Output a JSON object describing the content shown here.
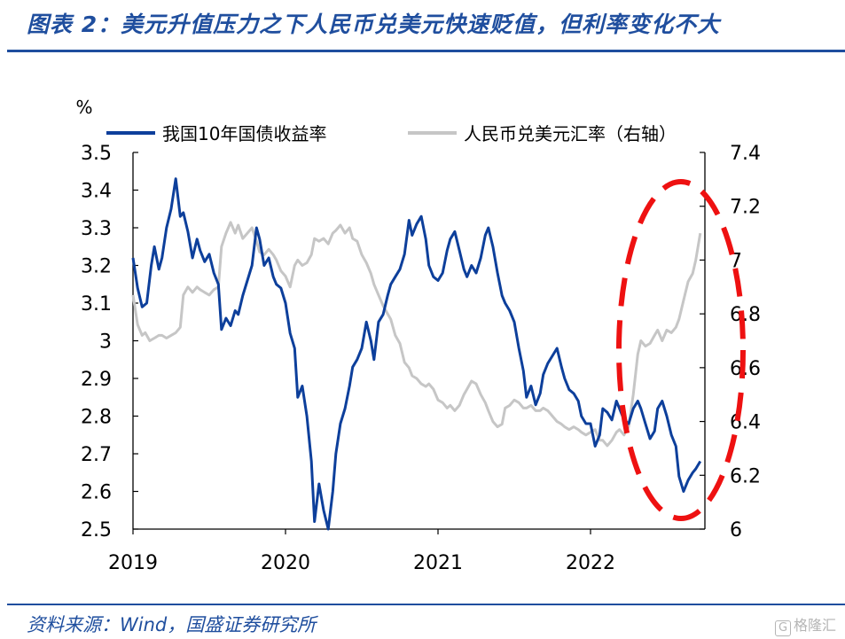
{
  "title": "图表 2：美元升值压力之下人民币兑美元快速贬值，但利率变化不大",
  "source": "资料来源：Wind，国盛证券研究所",
  "watermark": "格隆汇",
  "chart_data": {
    "type": "line",
    "title": "",
    "y_unit_label": "%",
    "x_tick_labels": [
      "2019",
      "2020",
      "2021",
      "2022"
    ],
    "x_range": [
      2019.0,
      2022.75
    ],
    "left_axis": {
      "range": [
        2.5,
        3.5
      ],
      "ticks": [
        "2.5",
        "2.6",
        "2.7",
        "2.8",
        "2.9",
        "3",
        "3.1",
        "3.2",
        "3.3",
        "3.4",
        "3.5"
      ]
    },
    "right_axis": {
      "range": [
        6.0,
        7.4
      ],
      "ticks": [
        "6",
        "6.2",
        "6.4",
        "6.6",
        "6.8",
        "7",
        "7.2",
        "7.4"
      ]
    },
    "legend_position": "top",
    "grid": false,
    "annotation": "red dashed ellipse highlighting 2022 H2",
    "series": [
      {
        "name": "我国10年国债收益率",
        "axis": "left",
        "color": "#0d3f9b",
        "points": [
          [
            2019.0,
            3.22
          ],
          [
            2019.03,
            3.14
          ],
          [
            2019.06,
            3.09
          ],
          [
            2019.09,
            3.1
          ],
          [
            2019.12,
            3.2
          ],
          [
            2019.14,
            3.25
          ],
          [
            2019.17,
            3.19
          ],
          [
            2019.19,
            3.22
          ],
          [
            2019.22,
            3.3
          ],
          [
            2019.25,
            3.35
          ],
          [
            2019.28,
            3.43
          ],
          [
            2019.31,
            3.33
          ],
          [
            2019.33,
            3.34
          ],
          [
            2019.36,
            3.29
          ],
          [
            2019.39,
            3.22
          ],
          [
            2019.42,
            3.27
          ],
          [
            2019.44,
            3.24
          ],
          [
            2019.47,
            3.21
          ],
          [
            2019.5,
            3.23
          ],
          [
            2019.53,
            3.18
          ],
          [
            2019.56,
            3.15
          ],
          [
            2019.58,
            3.03
          ],
          [
            2019.61,
            3.06
          ],
          [
            2019.64,
            3.04
          ],
          [
            2019.67,
            3.08
          ],
          [
            2019.69,
            3.07
          ],
          [
            2019.72,
            3.12
          ],
          [
            2019.75,
            3.16
          ],
          [
            2019.78,
            3.2
          ],
          [
            2019.81,
            3.3
          ],
          [
            2019.83,
            3.27
          ],
          [
            2019.86,
            3.2
          ],
          [
            2019.89,
            3.22
          ],
          [
            2019.92,
            3.17
          ],
          [
            2019.94,
            3.15
          ],
          [
            2019.97,
            3.14
          ],
          [
            2020.0,
            3.1
          ],
          [
            2020.03,
            3.02
          ],
          [
            2020.06,
            2.98
          ],
          [
            2020.08,
            2.85
          ],
          [
            2020.11,
            2.88
          ],
          [
            2020.14,
            2.8
          ],
          [
            2020.17,
            2.68
          ],
          [
            2020.19,
            2.52
          ],
          [
            2020.22,
            2.62
          ],
          [
            2020.25,
            2.55
          ],
          [
            2020.28,
            2.5
          ],
          [
            2020.31,
            2.6
          ],
          [
            2020.33,
            2.7
          ],
          [
            2020.36,
            2.78
          ],
          [
            2020.39,
            2.82
          ],
          [
            2020.42,
            2.88
          ],
          [
            2020.44,
            2.93
          ],
          [
            2020.47,
            2.95
          ],
          [
            2020.5,
            2.98
          ],
          [
            2020.53,
            3.05
          ],
          [
            2020.56,
            3.0
          ],
          [
            2020.58,
            2.95
          ],
          [
            2020.61,
            3.05
          ],
          [
            2020.64,
            3.07
          ],
          [
            2020.67,
            3.12
          ],
          [
            2020.69,
            3.15
          ],
          [
            2020.72,
            3.17
          ],
          [
            2020.75,
            3.19
          ],
          [
            2020.78,
            3.23
          ],
          [
            2020.81,
            3.32
          ],
          [
            2020.83,
            3.28
          ],
          [
            2020.86,
            3.31
          ],
          [
            2020.89,
            3.33
          ],
          [
            2020.92,
            3.27
          ],
          [
            2020.94,
            3.2
          ],
          [
            2020.97,
            3.17
          ],
          [
            2021.0,
            3.16
          ],
          [
            2021.03,
            3.18
          ],
          [
            2021.06,
            3.24
          ],
          [
            2021.08,
            3.27
          ],
          [
            2021.11,
            3.29
          ],
          [
            2021.14,
            3.24
          ],
          [
            2021.17,
            3.19
          ],
          [
            2021.19,
            3.17
          ],
          [
            2021.22,
            3.2
          ],
          [
            2021.25,
            3.18
          ],
          [
            2021.28,
            3.22
          ],
          [
            2021.31,
            3.28
          ],
          [
            2021.33,
            3.3
          ],
          [
            2021.36,
            3.25
          ],
          [
            2021.39,
            3.18
          ],
          [
            2021.42,
            3.12
          ],
          [
            2021.44,
            3.1
          ],
          [
            2021.47,
            3.08
          ],
          [
            2021.5,
            3.05
          ],
          [
            2021.53,
            2.98
          ],
          [
            2021.56,
            2.92
          ],
          [
            2021.58,
            2.85
          ],
          [
            2021.61,
            2.88
          ],
          [
            2021.64,
            2.83
          ],
          [
            2021.67,
            2.86
          ],
          [
            2021.69,
            2.91
          ],
          [
            2021.72,
            2.94
          ],
          [
            2021.75,
            2.96
          ],
          [
            2021.78,
            2.98
          ],
          [
            2021.81,
            2.93
          ],
          [
            2021.83,
            2.9
          ],
          [
            2021.86,
            2.87
          ],
          [
            2021.89,
            2.86
          ],
          [
            2021.92,
            2.84
          ],
          [
            2021.94,
            2.8
          ],
          [
            2021.97,
            2.78
          ],
          [
            2022.0,
            2.78
          ],
          [
            2022.03,
            2.72
          ],
          [
            2022.06,
            2.75
          ],
          [
            2022.08,
            2.82
          ],
          [
            2022.11,
            2.81
          ],
          [
            2022.14,
            2.79
          ],
          [
            2022.17,
            2.84
          ],
          [
            2022.19,
            2.82
          ],
          [
            2022.22,
            2.79
          ],
          [
            2022.25,
            2.78
          ],
          [
            2022.28,
            2.82
          ],
          [
            2022.31,
            2.84
          ],
          [
            2022.33,
            2.82
          ],
          [
            2022.36,
            2.78
          ],
          [
            2022.39,
            2.74
          ],
          [
            2022.42,
            2.76
          ],
          [
            2022.44,
            2.82
          ],
          [
            2022.47,
            2.84
          ],
          [
            2022.5,
            2.8
          ],
          [
            2022.53,
            2.75
          ],
          [
            2022.56,
            2.72
          ],
          [
            2022.58,
            2.64
          ],
          [
            2022.61,
            2.6
          ],
          [
            2022.64,
            2.63
          ],
          [
            2022.67,
            2.65
          ],
          [
            2022.69,
            2.66
          ],
          [
            2022.72,
            2.68
          ]
        ]
      },
      {
        "name": "人民币兑美元汇率（右轴）",
        "axis": "right",
        "color": "#c6c6c6",
        "points": [
          [
            2019.0,
            6.87
          ],
          [
            2019.03,
            6.76
          ],
          [
            2019.06,
            6.72
          ],
          [
            2019.08,
            6.73
          ],
          [
            2019.11,
            6.7
          ],
          [
            2019.14,
            6.71
          ],
          [
            2019.17,
            6.72
          ],
          [
            2019.19,
            6.72
          ],
          [
            2019.22,
            6.71
          ],
          [
            2019.25,
            6.72
          ],
          [
            2019.28,
            6.73
          ],
          [
            2019.31,
            6.75
          ],
          [
            2019.33,
            6.87
          ],
          [
            2019.36,
            6.9
          ],
          [
            2019.39,
            6.88
          ],
          [
            2019.42,
            6.9
          ],
          [
            2019.44,
            6.89
          ],
          [
            2019.47,
            6.88
          ],
          [
            2019.5,
            6.87
          ],
          [
            2019.53,
            6.89
          ],
          [
            2019.56,
            6.9
          ],
          [
            2019.58,
            7.05
          ],
          [
            2019.61,
            7.1
          ],
          [
            2019.64,
            7.14
          ],
          [
            2019.67,
            7.1
          ],
          [
            2019.69,
            7.13
          ],
          [
            2019.72,
            7.08
          ],
          [
            2019.75,
            7.1
          ],
          [
            2019.78,
            7.12
          ],
          [
            2019.81,
            7.07
          ],
          [
            2019.83,
            7.03
          ],
          [
            2019.86,
            7.02
          ],
          [
            2019.89,
            7.04
          ],
          [
            2019.92,
            7.02
          ],
          [
            2019.94,
            7.0
          ],
          [
            2019.97,
            6.96
          ],
          [
            2020.0,
            6.94
          ],
          [
            2020.03,
            6.9
          ],
          [
            2020.06,
            6.98
          ],
          [
            2020.08,
            7.0
          ],
          [
            2020.11,
            6.98
          ],
          [
            2020.14,
            6.99
          ],
          [
            2020.17,
            7.02
          ],
          [
            2020.19,
            7.08
          ],
          [
            2020.22,
            7.07
          ],
          [
            2020.25,
            7.08
          ],
          [
            2020.28,
            7.06
          ],
          [
            2020.31,
            7.1
          ],
          [
            2020.33,
            7.11
          ],
          [
            2020.36,
            7.13
          ],
          [
            2020.39,
            7.1
          ],
          [
            2020.42,
            7.12
          ],
          [
            2020.44,
            7.08
          ],
          [
            2020.47,
            7.07
          ],
          [
            2020.5,
            7.02
          ],
          [
            2020.53,
            6.99
          ],
          [
            2020.56,
            6.95
          ],
          [
            2020.58,
            6.91
          ],
          [
            2020.61,
            6.87
          ],
          [
            2020.64,
            6.83
          ],
          [
            2020.67,
            6.8
          ],
          [
            2020.69,
            6.78
          ],
          [
            2020.72,
            6.72
          ],
          [
            2020.75,
            6.69
          ],
          [
            2020.78,
            6.62
          ],
          [
            2020.81,
            6.6
          ],
          [
            2020.83,
            6.57
          ],
          [
            2020.86,
            6.56
          ],
          [
            2020.89,
            6.54
          ],
          [
            2020.92,
            6.53
          ],
          [
            2020.94,
            6.54
          ],
          [
            2020.97,
            6.52
          ],
          [
            2021.0,
            6.48
          ],
          [
            2021.03,
            6.47
          ],
          [
            2021.06,
            6.45
          ],
          [
            2021.08,
            6.46
          ],
          [
            2021.11,
            6.44
          ],
          [
            2021.14,
            6.46
          ],
          [
            2021.17,
            6.5
          ],
          [
            2021.19,
            6.52
          ],
          [
            2021.22,
            6.55
          ],
          [
            2021.25,
            6.54
          ],
          [
            2021.28,
            6.5
          ],
          [
            2021.31,
            6.47
          ],
          [
            2021.33,
            6.44
          ],
          [
            2021.36,
            6.4
          ],
          [
            2021.39,
            6.38
          ],
          [
            2021.42,
            6.39
          ],
          [
            2021.44,
            6.45
          ],
          [
            2021.47,
            6.46
          ],
          [
            2021.5,
            6.48
          ],
          [
            2021.53,
            6.47
          ],
          [
            2021.56,
            6.45
          ],
          [
            2021.58,
            6.45
          ],
          [
            2021.61,
            6.46
          ],
          [
            2021.64,
            6.44
          ],
          [
            2021.67,
            6.44
          ],
          [
            2021.69,
            6.45
          ],
          [
            2021.72,
            6.44
          ],
          [
            2021.75,
            6.42
          ],
          [
            2021.78,
            6.4
          ],
          [
            2021.81,
            6.39
          ],
          [
            2021.83,
            6.38
          ],
          [
            2021.86,
            6.37
          ],
          [
            2021.89,
            6.38
          ],
          [
            2021.92,
            6.37
          ],
          [
            2021.94,
            6.36
          ],
          [
            2021.97,
            6.35
          ],
          [
            2022.0,
            6.36
          ],
          [
            2022.03,
            6.37
          ],
          [
            2022.06,
            6.33
          ],
          [
            2022.08,
            6.33
          ],
          [
            2022.11,
            6.31
          ],
          [
            2022.14,
            6.33
          ],
          [
            2022.17,
            6.36
          ],
          [
            2022.19,
            6.37
          ],
          [
            2022.22,
            6.35
          ],
          [
            2022.25,
            6.38
          ],
          [
            2022.28,
            6.5
          ],
          [
            2022.31,
            6.65
          ],
          [
            2022.33,
            6.7
          ],
          [
            2022.36,
            6.68
          ],
          [
            2022.39,
            6.69
          ],
          [
            2022.42,
            6.72
          ],
          [
            2022.44,
            6.74
          ],
          [
            2022.47,
            6.7
          ],
          [
            2022.5,
            6.74
          ],
          [
            2022.53,
            6.73
          ],
          [
            2022.56,
            6.75
          ],
          [
            2022.58,
            6.78
          ],
          [
            2022.61,
            6.85
          ],
          [
            2022.64,
            6.92
          ],
          [
            2022.67,
            6.95
          ],
          [
            2022.69,
            7.0
          ],
          [
            2022.72,
            7.1
          ]
        ]
      }
    ]
  }
}
